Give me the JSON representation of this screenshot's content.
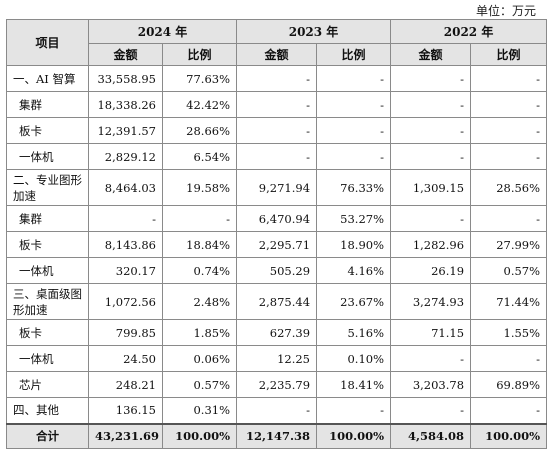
{
  "unit_label": "单位：万元",
  "header": {
    "item": "项目",
    "years": [
      "2024 年",
      "2023 年",
      "2022 年"
    ],
    "amount": "金额",
    "ratio": "比例"
  },
  "rows": [
    {
      "label": "一、AI 智算",
      "cells": [
        "33,558.95",
        "77.63%",
        "-",
        "-",
        "-",
        "-"
      ]
    },
    {
      "label": "集群",
      "cells": [
        "18,338.26",
        "42.42%",
        "-",
        "-",
        "-",
        "-"
      ]
    },
    {
      "label": "板卡",
      "cells": [
        "12,391.57",
        "28.66%",
        "-",
        "-",
        "-",
        "-"
      ]
    },
    {
      "label": "一体机",
      "cells": [
        "2,829.12",
        "6.54%",
        "-",
        "-",
        "-",
        "-"
      ]
    },
    {
      "label": "二、专业图形加速",
      "cells": [
        "8,464.03",
        "19.58%",
        "9,271.94",
        "76.33%",
        "1,309.15",
        "28.56%"
      ]
    },
    {
      "label": "集群",
      "cells": [
        "-",
        "-",
        "6,470.94",
        "53.27%",
        "-",
        "-"
      ]
    },
    {
      "label": "板卡",
      "cells": [
        "8,143.86",
        "18.84%",
        "2,295.71",
        "18.90%",
        "1,282.96",
        "27.99%"
      ]
    },
    {
      "label": "一体机",
      "cells": [
        "320.17",
        "0.74%",
        "505.29",
        "4.16%",
        "26.19",
        "0.57%"
      ]
    },
    {
      "label": "三、桌面级图形加速",
      "cells": [
        "1,072.56",
        "2.48%",
        "2,875.44",
        "23.67%",
        "3,274.93",
        "71.44%"
      ]
    },
    {
      "label": "板卡",
      "cells": [
        "799.85",
        "1.85%",
        "627.39",
        "5.16%",
        "71.15",
        "1.55%"
      ]
    },
    {
      "label": "一体机",
      "cells": [
        "24.50",
        "0.06%",
        "12.25",
        "0.10%",
        "-",
        "-"
      ]
    },
    {
      "label": "芯片",
      "cells": [
        "248.21",
        "0.57%",
        "2,235.79",
        "18.41%",
        "3,203.78",
        "69.89%"
      ]
    },
    {
      "label": "四、其他",
      "cells": [
        "136.15",
        "0.31%",
        "-",
        "-",
        "-",
        "-"
      ]
    }
  ],
  "total": {
    "label": "合计",
    "cells": [
      "43,231.69",
      "100.00%",
      "12,147.38",
      "100.00%",
      "4,584.08",
      "100.00%"
    ]
  }
}
